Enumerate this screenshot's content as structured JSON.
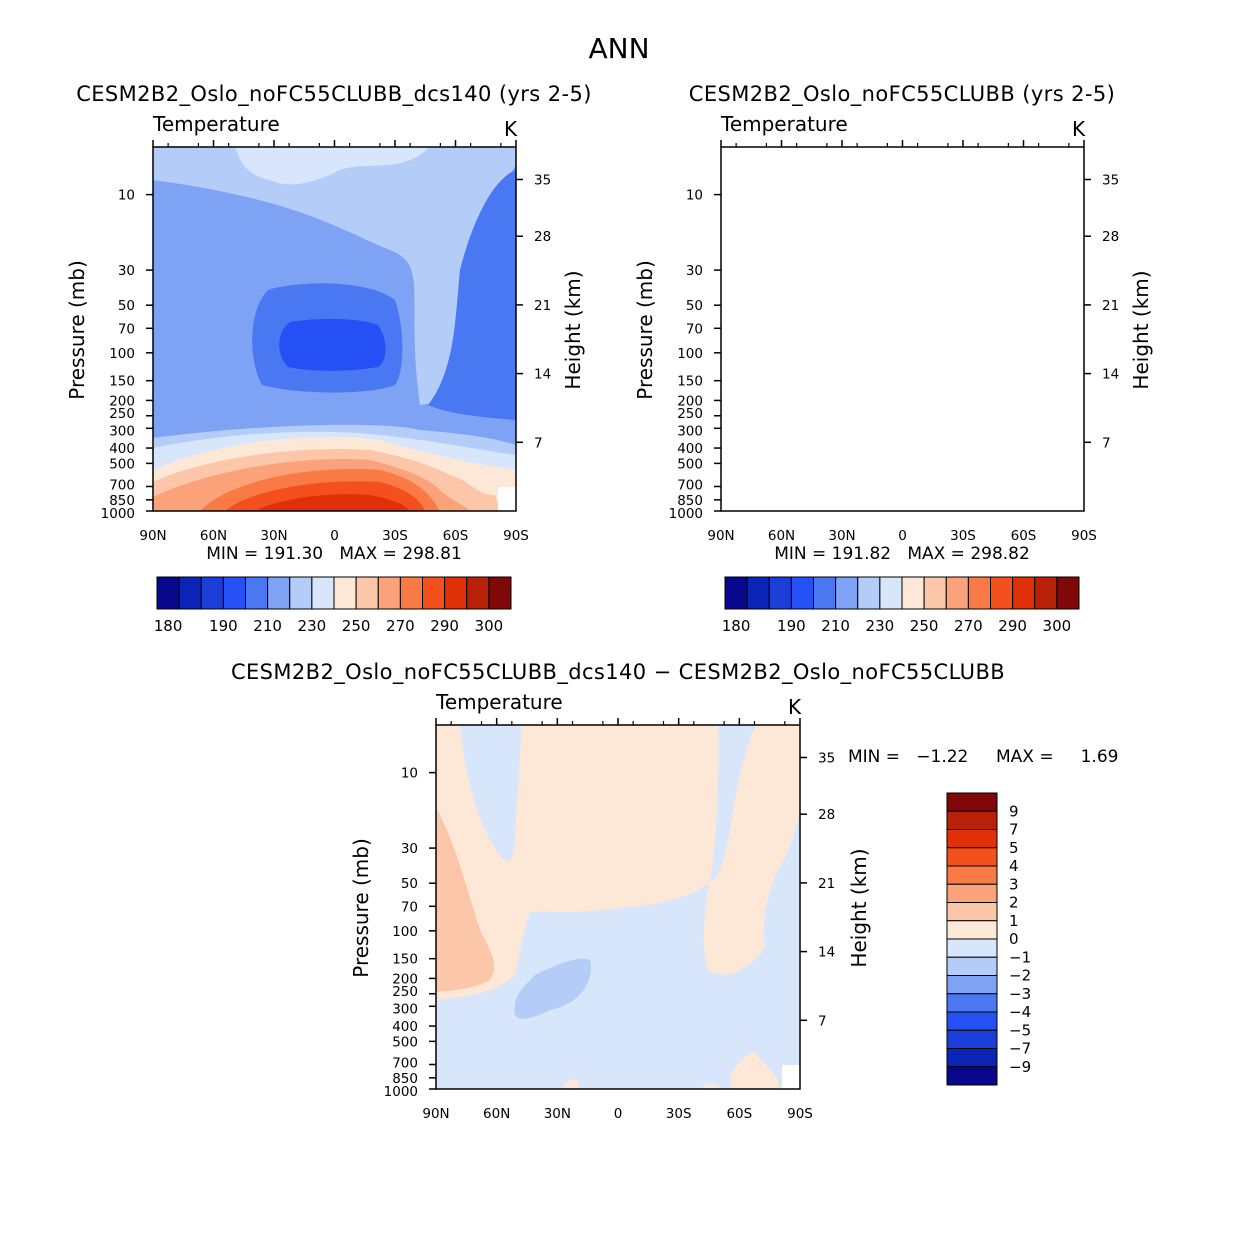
{
  "title": "ANN",
  "chart_data": [
    {
      "type": "contour",
      "title": "CESM2B2_Oslo_noFC55CLUBB_dcs140 (yrs 2-5)",
      "variable": "Temperature",
      "units": "K",
      "xlabel": "",
      "ylabel": "Pressure (mb)",
      "ylabel_right": "Height (km)",
      "x_ticks": [
        "90N",
        "60N",
        "30N",
        "0",
        "30S",
        "60S",
        "90S"
      ],
      "y_ticks": [
        "10",
        "30",
        "50",
        "70",
        "100",
        "150",
        "200",
        "250",
        "300",
        "400",
        "500",
        "700",
        "850",
        "1000"
      ],
      "y_right_ticks": [
        "35",
        "28",
        "21",
        "14",
        "7"
      ],
      "ylim": [
        1000,
        5
      ],
      "stats": "MIN = 191.30   MAX = 298.81",
      "min": 191.3,
      "max": 298.81,
      "colorbar_labels": [
        "180",
        "190",
        "210",
        "230",
        "250",
        "270",
        "290",
        "300"
      ],
      "levels": [
        180,
        185,
        190,
        200,
        210,
        220,
        230,
        240,
        250,
        260,
        270,
        280,
        290,
        295,
        300
      ]
    },
    {
      "type": "contour",
      "title": "CESM2B2_Oslo_noFC55CLUBB (yrs 2-5)",
      "variable": "Temperature",
      "units": "K",
      "xlabel": "",
      "ylabel": "Pressure (mb)",
      "ylabel_right": "Height (km)",
      "x_ticks": [
        "90N",
        "60N",
        "30N",
        "0",
        "30S",
        "60S",
        "90S"
      ],
      "y_ticks": [
        "10",
        "30",
        "50",
        "70",
        "100",
        "150",
        "200",
        "250",
        "300",
        "400",
        "500",
        "700",
        "850",
        "1000"
      ],
      "y_right_ticks": [
        "35",
        "28",
        "21",
        "14",
        "7"
      ],
      "ylim": [
        1000,
        5
      ],
      "stats": "MIN = 191.82   MAX = 298.82",
      "min": 191.82,
      "max": 298.82,
      "colorbar_labels": [
        "180",
        "190",
        "210",
        "230",
        "250",
        "270",
        "290",
        "300"
      ],
      "levels": [
        180,
        185,
        190,
        200,
        210,
        220,
        230,
        240,
        250,
        260,
        270,
        280,
        290,
        295,
        300
      ]
    },
    {
      "type": "contour",
      "title": "CESM2B2_Oslo_noFC55CLUBB_dcs140 − CESM2B2_Oslo_noFC55CLUBB",
      "variable": "Temperature",
      "units": "K",
      "xlabel": "",
      "ylabel": "Pressure (mb)",
      "ylabel_right": "Height (km)",
      "x_ticks": [
        "90N",
        "60N",
        "30N",
        "0",
        "30S",
        "60S",
        "90S"
      ],
      "y_ticks": [
        "10",
        "30",
        "50",
        "70",
        "100",
        "150",
        "200",
        "250",
        "300",
        "400",
        "500",
        "700",
        "850",
        "1000"
      ],
      "y_right_ticks": [
        "35",
        "28",
        "21",
        "14",
        "7"
      ],
      "ylim": [
        1000,
        5
      ],
      "stats_min": "MIN =   −1.22",
      "stats_max": "MAX =     1.69",
      "min": -1.22,
      "max": 1.69,
      "colorbar_labels": [
        "9",
        "7",
        "5",
        "4",
        "3",
        "2",
        "1",
        "0",
        "−1",
        "−2",
        "−3",
        "−4",
        "−5",
        "−7",
        "−9"
      ],
      "levels": [
        9,
        7,
        5,
        4,
        3,
        2,
        1,
        0,
        -1,
        -2,
        -3,
        -4,
        -5,
        -7,
        -9
      ]
    }
  ],
  "colors": {
    "abs_scale": [
      "#08088f",
      "#0a24b8",
      "#1b3ed8",
      "#2450f5",
      "#4a78f2",
      "#7ea2f4",
      "#b4ccf8",
      "#d8e6fb",
      "#fde8d8",
      "#fcc6a8",
      "#fba27a",
      "#fa7a45",
      "#f4501e",
      "#e03008",
      "#b82008",
      "#800808"
    ],
    "diff_scale": [
      "#800808",
      "#b82008",
      "#e03008",
      "#f4501e",
      "#fa7a45",
      "#fba27a",
      "#fcc6a8",
      "#fde8d8",
      "#d8e6fb",
      "#b4ccf8",
      "#7ea2f4",
      "#4a78f2",
      "#2450f5",
      "#1b3ed8",
      "#0a24b8",
      "#08088f"
    ]
  }
}
